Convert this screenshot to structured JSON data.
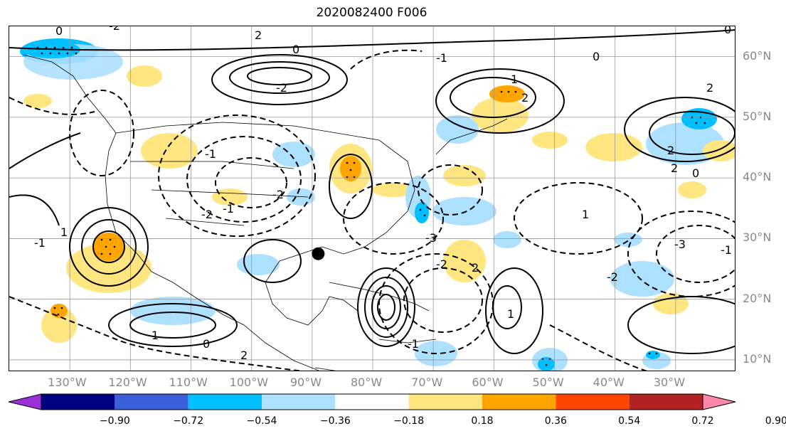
{
  "title": "2020082400 F006",
  "lon_labels": [
    "130°W",
    "120°W",
    "110°W",
    "100°W",
    "90°W",
    "80°W",
    "70°W",
    "60°W",
    "50°W",
    "40°W",
    "30°W"
  ],
  "lon_values": [
    -130,
    -120,
    -110,
    -100,
    -90,
    -80,
    -70,
    -60,
    -50,
    -40,
    -30
  ],
  "lat_labels": [
    "60°N",
    "50°N",
    "40°N",
    "30°N",
    "20°N",
    "10°N"
  ],
  "lat_values": [
    60,
    50,
    40,
    30,
    20,
    10
  ],
  "extent": {
    "lon_min": -140,
    "lon_max": -20,
    "lat_min": 8,
    "lat_max": 65
  },
  "colorbar": {
    "ticks": [
      "−0.90",
      "−0.72",
      "−0.54",
      "−0.36",
      "−0.18",
      "0.18",
      "0.36",
      "0.54",
      "0.72",
      "0.90"
    ],
    "colors": [
      "#9b30d9",
      "#000080",
      "#3b5fd6",
      "#00bfff",
      "#aee0ff",
      "#ffffff",
      "#ffe680",
      "#ffa500",
      "#ff4500",
      "#b22222",
      "#ff88aa"
    ]
  },
  "contour_labels": [
    "0",
    "-2",
    "2",
    "0",
    "-1",
    "1",
    "0",
    "0",
    "-2",
    "2",
    "-1",
    "-3",
    "-2",
    "2",
    "1",
    "0",
    "2",
    "-1",
    "-2",
    "1",
    "-1",
    "2",
    "0",
    "-2",
    "1",
    "-3",
    "-1",
    "2",
    "-1",
    "1",
    "-2",
    "2"
  ],
  "marker": {
    "lon": -89,
    "lat": 27.5
  }
}
